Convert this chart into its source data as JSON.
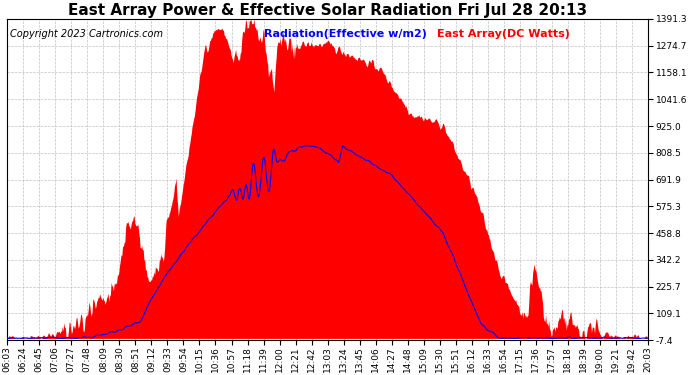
{
  "title": "East Array Power & Effective Solar Radiation Fri Jul 28 20:13",
  "copyright": "Copyright 2023 Cartronics.com",
  "legend_radiation": "Radiation(Effective w/m2)",
  "legend_east": "East Array(DC Watts)",
  "ymin": -7.4,
  "ymax": 1391.3,
  "yticks": [
    -7.4,
    109.1,
    225.7,
    342.2,
    458.8,
    575.3,
    691.9,
    808.5,
    925.0,
    1041.6,
    1158.1,
    1274.7,
    1391.3
  ],
  "background_color": "#ffffff",
  "plot_bg_color": "#ffffff",
  "grid_color": "#bbbbbb",
  "red_color": "#ff0000",
  "blue_color": "#0000ff",
  "title_color": "#000000",
  "copyright_color": "#000000",
  "xtick_labels": [
    "06:03",
    "06:24",
    "06:45",
    "07:06",
    "07:27",
    "07:48",
    "08:09",
    "08:30",
    "08:51",
    "09:12",
    "09:33",
    "09:54",
    "10:15",
    "10:36",
    "10:57",
    "11:18",
    "11:39",
    "12:00",
    "12:21",
    "12:42",
    "13:03",
    "13:24",
    "13:45",
    "14:06",
    "14:27",
    "14:48",
    "15:09",
    "15:30",
    "15:51",
    "16:12",
    "16:33",
    "16:54",
    "17:15",
    "17:36",
    "17:57",
    "18:18",
    "18:39",
    "19:00",
    "19:21",
    "19:42",
    "20:03"
  ],
  "title_fontsize": 11,
  "copyright_fontsize": 7,
  "legend_fontsize": 8,
  "tick_fontsize": 6.5
}
